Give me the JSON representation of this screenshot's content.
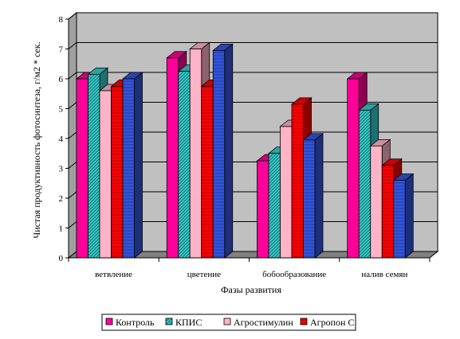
{
  "chart_data": {
    "type": "bar",
    "style": "3d-clustered",
    "xlabel": "Фазы развития",
    "ylabel": "Чистая продуктивность фотосинтеза, г/м2 * сек.",
    "ylim": [
      0,
      8
    ],
    "yticks": [
      0,
      1,
      2,
      3,
      4,
      5,
      6,
      7,
      8
    ],
    "grid": true,
    "legend_position": "bottom",
    "categories": [
      "ветвление",
      "цветение",
      "бобообразование",
      "налив семян"
    ],
    "series": [
      {
        "name": "Контроль",
        "color": "#ff0099",
        "pattern": "solid",
        "values": [
          6.0,
          6.7,
          3.25,
          6.0
        ]
      },
      {
        "name": "КПИС",
        "color": "#33cccc",
        "pattern": "diagonal",
        "values": [
          6.15,
          6.25,
          3.5,
          4.95
        ]
      },
      {
        "name": "Агростимулин",
        "color": "#ffb3c6",
        "pattern": "solid",
        "values": [
          5.6,
          7.0,
          4.4,
          3.75
        ]
      },
      {
        "name": "Агропон С",
        "color": "#ff0000",
        "pattern": "horizontal",
        "values": [
          5.75,
          5.75,
          5.15,
          3.1
        ]
      },
      {
        "color": "#3355dd",
        "pattern": "horizontal",
        "values": [
          6.0,
          6.95,
          3.95,
          2.6
        ]
      }
    ]
  }
}
